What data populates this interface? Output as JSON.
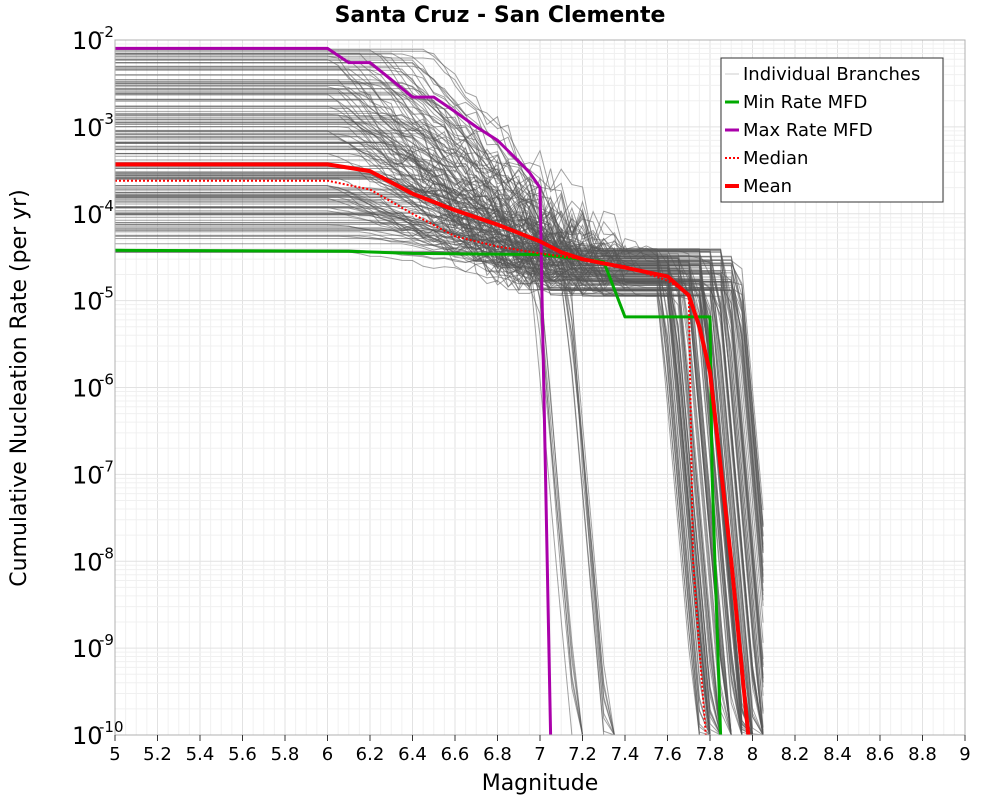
{
  "chart_data": {
    "type": "line",
    "title": "Santa Cruz - San Clemente",
    "xlabel": "Magnitude",
    "ylabel": "Cumulative Nucleation Rate (per yr)",
    "xlim": [
      5,
      9
    ],
    "ylim_exponents": [
      -10,
      -2
    ],
    "y_scale": "log",
    "grid": true,
    "legend_position": "top-right",
    "x_ticks": [
      "5",
      "5.2",
      "5.4",
      "5.6",
      "5.8",
      "6",
      "6.2",
      "6.4",
      "6.6",
      "6.8",
      "7",
      "7.2",
      "7.4",
      "7.6",
      "7.8",
      "8",
      "8.2",
      "8.4",
      "8.6",
      "8.8",
      "9"
    ],
    "y_ticks": [
      {
        "base": "10",
        "exp": "-10",
        "log10": -10
      },
      {
        "base": "10",
        "exp": "-9",
        "log10": -9
      },
      {
        "base": "10",
        "exp": "-8",
        "log10": -8
      },
      {
        "base": "10",
        "exp": "-7",
        "log10": -7
      },
      {
        "base": "10",
        "exp": "-6",
        "log10": -6
      },
      {
        "base": "10",
        "exp": "-5",
        "log10": -5
      },
      {
        "base": "10",
        "exp": "-4",
        "log10": -4
      },
      {
        "base": "10",
        "exp": "-3",
        "log10": -3
      },
      {
        "base": "10",
        "exp": "-2",
        "log10": -2
      }
    ],
    "series": [
      {
        "name": "Min Rate MFD",
        "color": "#00aa00",
        "style": "solid",
        "x": [
          5.0,
          6.1,
          6.4,
          7.0,
          7.3,
          7.4,
          7.8,
          7.81,
          7.85
        ],
        "y": [
          3.8e-05,
          3.7e-05,
          3.5e-05,
          3.4e-05,
          2.8e-05,
          6.5e-06,
          6.5e-06,
          1e-07,
          1e-10
        ]
      },
      {
        "name": "Max Rate MFD",
        "color": "#aa00aa",
        "style": "solid",
        "x": [
          5.0,
          6.0,
          6.1,
          6.2,
          6.3,
          6.4,
          6.5,
          6.6,
          6.7,
          6.8,
          6.9,
          6.95,
          7.0,
          7.01,
          7.05
        ],
        "y": [
          0.008,
          0.008,
          0.0055,
          0.0055,
          0.0035,
          0.0022,
          0.0022,
          0.0015,
          0.001,
          0.0007,
          0.0004,
          0.0003,
          0.0002,
          1e-05,
          1e-10
        ]
      },
      {
        "name": "Median",
        "color": "#ff0000",
        "style": "dotted",
        "x": [
          5.0,
          6.0,
          6.2,
          6.4,
          6.6,
          6.8,
          7.0,
          7.2,
          7.4,
          7.6,
          7.7,
          7.72,
          7.78
        ],
        "y": [
          0.00024,
          0.00024,
          0.00019,
          0.0001,
          5.5e-05,
          4.2e-05,
          3.5e-05,
          3e-05,
          2.5e-05,
          1.7e-05,
          1.2e-05,
          1e-08,
          1e-10
        ]
      },
      {
        "name": "Mean",
        "color": "#ff0000",
        "style": "thick",
        "x": [
          5.0,
          6.0,
          6.2,
          6.4,
          6.6,
          6.8,
          7.0,
          7.1,
          7.2,
          7.4,
          7.6,
          7.7,
          7.75,
          7.8,
          7.9,
          7.98
        ],
        "y": [
          0.00037,
          0.00037,
          0.00031,
          0.00017,
          0.00011,
          7.5e-05,
          4.8e-05,
          3.6e-05,
          3e-05,
          2.4e-05,
          1.9e-05,
          1.15e-05,
          5e-06,
          1.5e-06,
          1e-08,
          1e-10
        ]
      }
    ],
    "individual_branches": {
      "name": "Individual Branches",
      "color": "#555555"
    },
    "legend": [
      {
        "name": "Individual Branches",
        "color": "#cccccc",
        "style": "thin"
      },
      {
        "name": "Min Rate MFD",
        "color": "#00aa00",
        "style": "solid"
      },
      {
        "name": "Max Rate MFD",
        "color": "#aa00aa",
        "style": "solid"
      },
      {
        "name": "Median",
        "color": "#ff0000",
        "style": "dotted"
      },
      {
        "name": "Mean",
        "color": "#ff0000",
        "style": "thick"
      }
    ]
  }
}
